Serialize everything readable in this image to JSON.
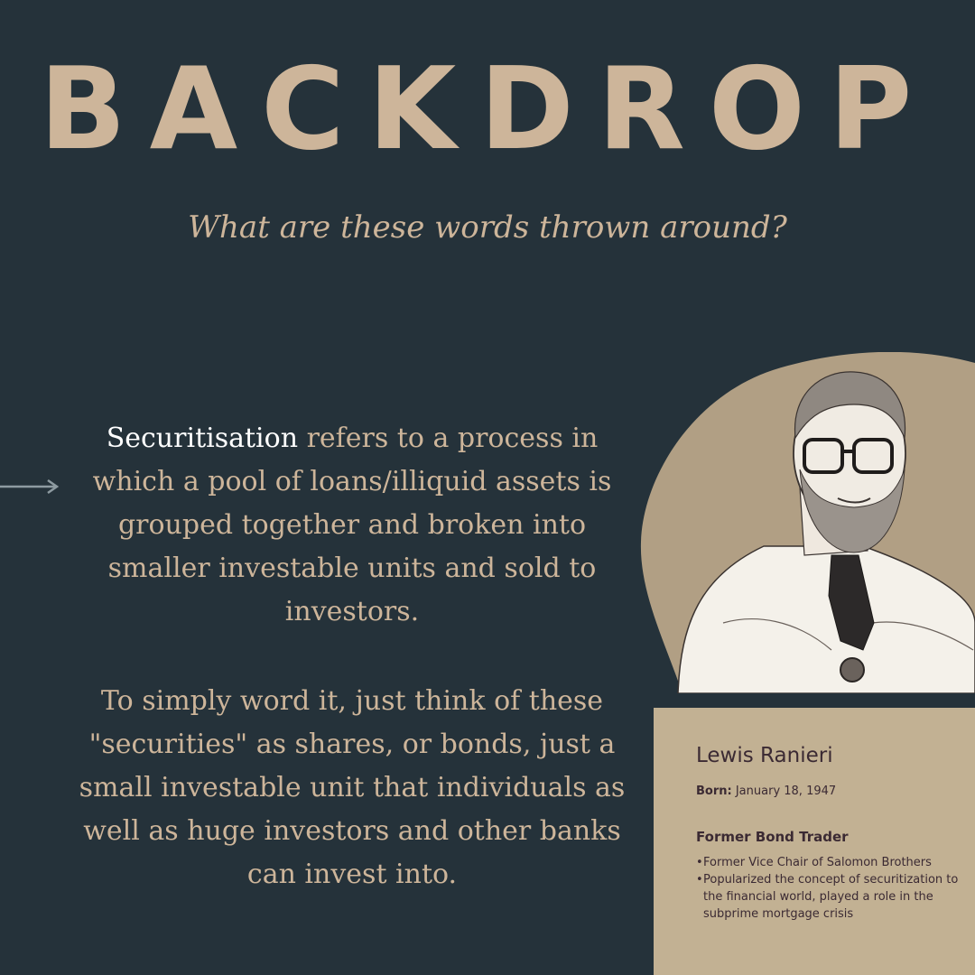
{
  "title": "BACKDROP",
  "subtitle": "What are these words thrown around?",
  "definition": {
    "term": "Securitisation",
    "text": " refers to a process in which a pool of loans/illiquid assets is grouped together and broken into smaller investable units and sold to investors."
  },
  "explanation": "To simply word it, just think of these \"securities\" as shares, or bonds, just a small investable unit that individuals as well as huge investors and other banks can invest into.",
  "profile": {
    "name": "Lewis Ranieri",
    "born_label": "Born:",
    "born_value": " January 18, 1947",
    "role": "Former Bond Trader",
    "bullets": [
      "Former Vice Chair of Salomon Brothers",
      "Popularized the concept of securitization to the financial world, played a role in the subprime mortgage crisis"
    ]
  },
  "colors": {
    "background": "#25323a",
    "accent": "#cdb59a",
    "card": "#c2b193",
    "card_text": "#3b2a33"
  },
  "icons": [
    "right-arrow-icon",
    "portrait-illustration"
  ]
}
